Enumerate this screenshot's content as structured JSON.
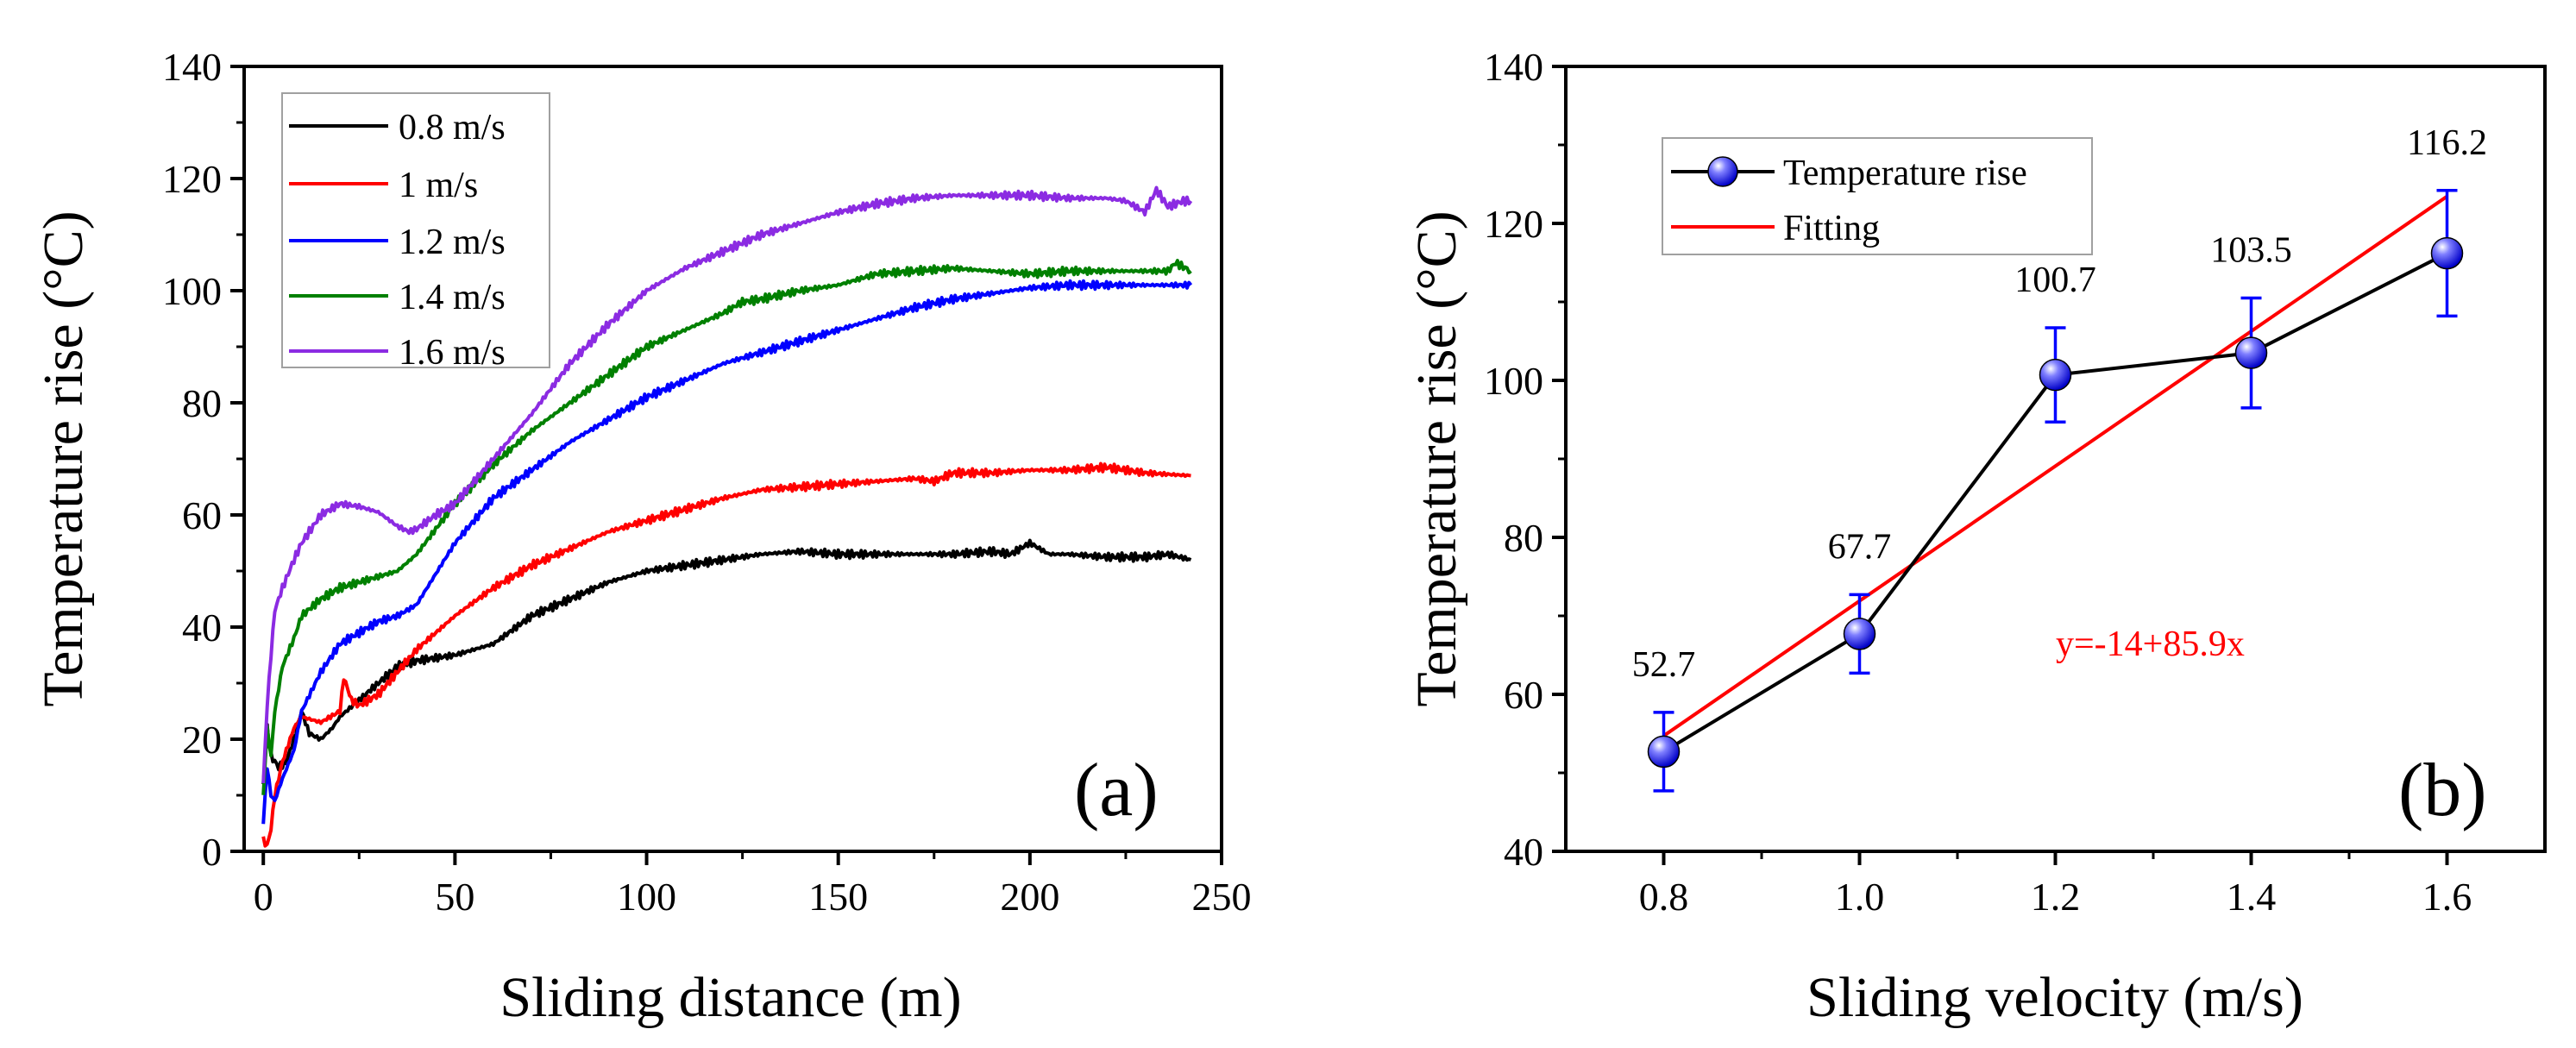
{
  "colors": {
    "black": "#000000",
    "red": "#ff0000",
    "blue": "#0000ff",
    "green": "#008000",
    "violet": "#8b2be2",
    "fit": "#ff0000",
    "marker": "#1f1fe6"
  },
  "chart_data": [
    {
      "type": "line",
      "panel_label": "(a)",
      "xlabel": "Sliding distance (m)",
      "ylabel": "Temperature rise (°C)",
      "xlim": [
        -5,
        250
      ],
      "ylim": [
        0,
        140
      ],
      "xticks": [
        "0",
        "50",
        "100",
        "150",
        "200",
        "250"
      ],
      "yticks": [
        "0",
        "20",
        "40",
        "60",
        "80",
        "100",
        "120",
        "140"
      ],
      "legend_position": "top-left",
      "series": [
        {
          "name": "0.8 m/s",
          "color_key": "black",
          "x": [
            0,
            1,
            2,
            4,
            6,
            8,
            10,
            12,
            15,
            18,
            20,
            25,
            30,
            35,
            40,
            50,
            60,
            70,
            80,
            90,
            100,
            110,
            120,
            130,
            140,
            150,
            160,
            170,
            180,
            190,
            195,
            200,
            205,
            210,
            220,
            230,
            236,
            242
          ],
          "y": [
            12,
            22,
            17,
            15,
            16,
            20,
            25,
            21,
            20,
            22,
            24,
            27,
            30,
            33,
            34,
            35,
            37,
            42,
            45,
            48,
            50,
            51,
            52,
            53,
            53.5,
            53,
            53,
            53,
            53,
            53.5,
            53,
            55,
            53,
            53,
            52.5,
            52.5,
            53,
            52
          ]
        },
        {
          "name": "1 m/s",
          "color_key": "red",
          "x": [
            0,
            1,
            2,
            3,
            5,
            8,
            10,
            15,
            20,
            21,
            23,
            25,
            30,
            35,
            40,
            50,
            60,
            70,
            80,
            90,
            100,
            110,
            120,
            130,
            140,
            150,
            160,
            170,
            175,
            180,
            190,
            200,
            210,
            220,
            230,
            242
          ],
          "y": [
            2,
            1,
            4,
            10,
            16,
            22,
            24,
            23,
            25,
            31,
            27,
            26,
            28,
            32,
            36,
            42,
            47,
            51,
            54,
            57,
            59,
            61,
            63,
            64.5,
            65,
            65.5,
            66,
            66.5,
            66,
            67.5,
            67.5,
            68,
            68,
            68.5,
            67.5,
            67
          ]
        },
        {
          "name": "1.2 m/s",
          "color_key": "blue",
          "x": [
            0,
            1,
            2,
            3,
            5,
            8,
            10,
            15,
            20,
            25,
            30,
            35,
            40,
            50,
            60,
            70,
            80,
            90,
            100,
            110,
            120,
            130,
            140,
            150,
            160,
            170,
            180,
            190,
            200,
            210,
            220,
            230,
            236,
            242
          ],
          "y": [
            5,
            15,
            10,
            9,
            13,
            18,
            25,
            32,
            37,
            39,
            41,
            42,
            44,
            55,
            63,
            68,
            73,
            77,
            81,
            84,
            87,
            89,
            91,
            93,
            95,
            97,
            98.5,
            99.5,
            100.5,
            101,
            101,
            101,
            101,
            101
          ]
        },
        {
          "name": "1.4 m/s",
          "color_key": "green",
          "x": [
            0,
            1,
            2,
            3,
            5,
            8,
            10,
            15,
            20,
            25,
            30,
            35,
            40,
            50,
            60,
            70,
            80,
            90,
            100,
            110,
            120,
            125,
            130,
            140,
            150,
            160,
            170,
            180,
            190,
            200,
            210,
            220,
            230,
            236,
            238,
            242
          ],
          "y": [
            10,
            22,
            17,
            25,
            33,
            38,
            42,
            45,
            47,
            48,
            49,
            50,
            53,
            62,
            69,
            75,
            80,
            85,
            90,
            93,
            96,
            98,
            98.5,
            100,
            101,
            103,
            103.5,
            104,
            103.5,
            103,
            103.5,
            103.5,
            103.5,
            103.5,
            105,
            103.5
          ]
        },
        {
          "name": "1.6 m/s",
          "color_key": "violet",
          "x": [
            0,
            1,
            2,
            3,
            5,
            8,
            10,
            15,
            20,
            25,
            30,
            35,
            38,
            40,
            45,
            50,
            60,
            70,
            80,
            90,
            100,
            110,
            120,
            130,
            140,
            150,
            160,
            170,
            180,
            190,
            200,
            210,
            220,
            225,
            230,
            233,
            236,
            240,
            242
          ],
          "y": [
            12,
            26,
            35,
            43,
            47,
            52,
            55,
            60,
            62,
            61.5,
            60.5,
            58,
            57,
            57.5,
            60,
            62,
            70,
            78,
            87,
            94,
            100,
            104,
            107,
            110,
            112,
            114,
            115.5,
            116.5,
            117,
            117,
            117,
            116.5,
            116.5,
            116,
            114,
            118,
            115,
            116,
            116
          ]
        }
      ]
    },
    {
      "type": "scatter",
      "panel_label": "(b)",
      "xlabel": "Sliding velocity (m/s)",
      "ylabel": "Temperature rise (°C)",
      "xlim": [
        0.7,
        1.7
      ],
      "ylim": [
        40,
        140
      ],
      "xticks": [
        "0.8",
        "1.0",
        "1.2",
        "1.4",
        "1.6"
      ],
      "yticks": [
        "40",
        "60",
        "80",
        "100",
        "120",
        "140"
      ],
      "legend_position": "top-left",
      "series": [
        {
          "name": "Temperature rise",
          "color_key": "marker",
          "x": [
            0.8,
            1.0,
            1.2,
            1.4,
            1.6
          ],
          "y": [
            52.7,
            67.7,
            100.7,
            103.5,
            116.2
          ],
          "error": [
            5,
            5,
            6,
            7,
            8
          ],
          "labels": [
            "52.7",
            "67.7",
            "100.7",
            "103.5",
            "116.2"
          ]
        },
        {
          "name": "Fitting",
          "color_key": "fit",
          "x": [
            0.8,
            1.6
          ],
          "y": [
            54.72,
            123.44
          ]
        }
      ],
      "annotation": "y=-14+85.9x"
    }
  ]
}
